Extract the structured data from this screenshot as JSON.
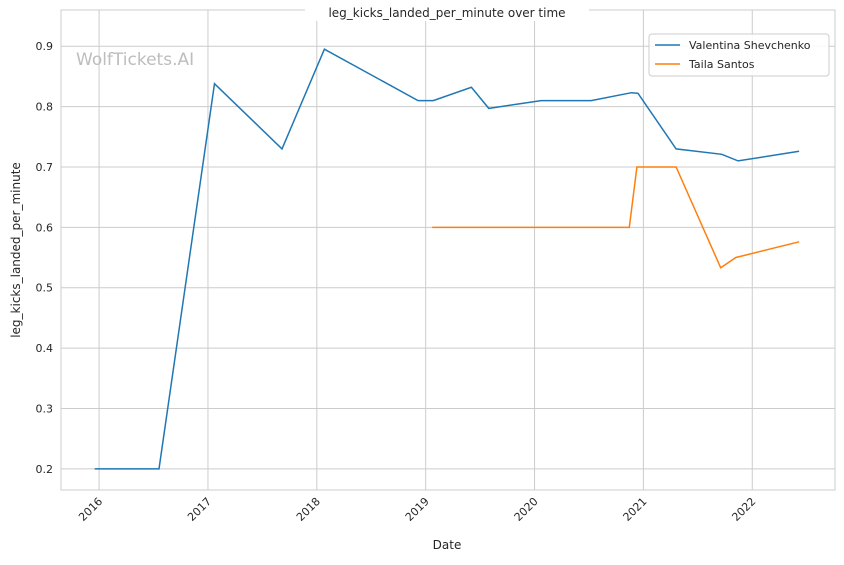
{
  "chart_data": {
    "type": "line",
    "title": "leg_kicks_landed_per_minute over time",
    "xlabel": "Date",
    "ylabel": "leg_kicks_landed_per_minute",
    "watermark": "WolfTickets.AI",
    "xlim": [
      2015.65,
      2022.76
    ],
    "ylim": [
      0.165,
      0.96
    ],
    "grid": true,
    "legend_position": "top-right",
    "x_ticks": [
      2016,
      2017,
      2018,
      2019,
      2020,
      2021,
      2022
    ],
    "x_tick_labels": [
      "2016",
      "2017",
      "2018",
      "2019",
      "2020",
      "2021",
      "2022"
    ],
    "y_ticks": [
      0.2,
      0.3,
      0.4,
      0.5,
      0.6,
      0.7,
      0.8,
      0.9
    ],
    "y_tick_labels": [
      "0.2",
      "0.3",
      "0.4",
      "0.5",
      "0.6",
      "0.7",
      "0.8",
      "0.9"
    ],
    "series": [
      {
        "name": "Valentina Shevchenko",
        "color": "#1f77b4",
        "x": [
          2015.96,
          2016.55,
          2017.06,
          2017.68,
          2018.07,
          2018.93,
          2019.07,
          2019.42,
          2019.58,
          2020.06,
          2020.52,
          2020.89,
          2020.95,
          2021.3,
          2021.72,
          2021.87,
          2022.43
        ],
        "y": [
          0.2,
          0.2,
          0.838,
          0.73,
          0.895,
          0.81,
          0.81,
          0.832,
          0.797,
          0.81,
          0.81,
          0.823,
          0.822,
          0.73,
          0.721,
          0.71,
          0.726
        ]
      },
      {
        "name": "Taila Santos",
        "color": "#ff7f0e",
        "x": [
          2019.06,
          2020.87,
          2020.94,
          2021.3,
          2021.71,
          2021.85,
          2022.43
        ],
        "y": [
          0.6,
          0.6,
          0.7,
          0.7,
          0.533,
          0.55,
          0.576
        ]
      }
    ]
  }
}
